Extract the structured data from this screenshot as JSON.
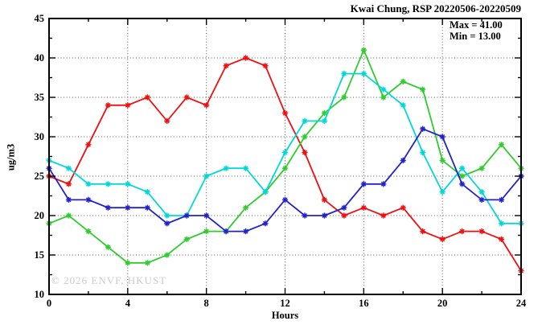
{
  "chart_data": {
    "type": "line",
    "title": "Kwai Chung, RSP 20220506-20220509",
    "xlabel": "Hours",
    "ylabel": "ug/m3",
    "watermark": "© 2026 ENVF, HKUST",
    "annotation": {
      "max_label": "Max = 41.00",
      "min_label": "Min = 13.00",
      "max": 41.0,
      "min": 13.0
    },
    "xlim": [
      0,
      24
    ],
    "ylim": [
      10,
      45
    ],
    "xticks": [
      0,
      4,
      8,
      12,
      16,
      20,
      24
    ],
    "xticks_minor": [
      2,
      6,
      10,
      14,
      18,
      22
    ],
    "yticks": [
      10,
      15,
      20,
      25,
      30,
      35,
      40,
      45
    ],
    "yticks_minor": [
      12.5,
      17.5,
      22.5,
      27.5,
      32.5,
      37.5,
      42.5
    ],
    "grid": true,
    "legend_position": "none",
    "axis_color": "#000000",
    "grid_color": "#555555",
    "x": [
      0,
      1,
      2,
      3,
      4,
      5,
      6,
      7,
      8,
      9,
      10,
      11,
      12,
      13,
      14,
      15,
      16,
      17,
      18,
      19,
      20,
      21,
      22,
      23,
      24
    ],
    "series": [
      {
        "name": "red",
        "color": "#ee1111",
        "values": [
          25,
          24,
          29,
          34,
          34,
          35,
          32,
          35,
          34,
          39,
          40,
          39,
          33,
          28,
          22,
          20,
          21,
          20,
          21,
          18,
          17,
          18,
          18,
          17,
          13
        ]
      },
      {
        "name": "green",
        "color": "#2ecc2e",
        "values": [
          19,
          20,
          18,
          16,
          14,
          14,
          15,
          17,
          18,
          18,
          21,
          23,
          26,
          30,
          33,
          35,
          41,
          35,
          37,
          36,
          27,
          25,
          26,
          29,
          26
        ]
      },
      {
        "name": "cyan",
        "color": "#00d8d8",
        "values": [
          27,
          26,
          24,
          24,
          24,
          23,
          20,
          20,
          25,
          26,
          26,
          23,
          28,
          32,
          32,
          38,
          38,
          36,
          34,
          28,
          23,
          26,
          23,
          19,
          19
        ]
      },
      {
        "name": "blue",
        "color": "#2222cc",
        "values": [
          26,
          22,
          22,
          21,
          21,
          21,
          19,
          20,
          20,
          18,
          18,
          19,
          22,
          20,
          20,
          21,
          24,
          24,
          27,
          31,
          30,
          24,
          22,
          22,
          25
        ]
      }
    ]
  }
}
